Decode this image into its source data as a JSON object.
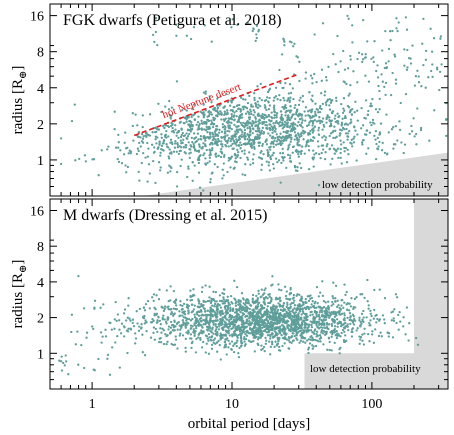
{
  "figure": {
    "xlabel": "orbital period [days]",
    "point_color": "#5f9e9a",
    "region_color": "#d9d9d9",
    "annotation_color": "#e41a1c"
  },
  "chart_data": [
    {
      "type": "scatter",
      "title": "FGK dwarfs (Petigura et al. 2018)",
      "xlabel": "orbital period [days]",
      "ylabel": "radius [R⊕]",
      "xscale": "log",
      "yscale": "log",
      "xlim": [
        0.5,
        350
      ],
      "ylim": [
        0.5,
        20
      ],
      "x_ticks": [
        1,
        10,
        100
      ],
      "x_tick_labels": [
        "1",
        "10",
        "100"
      ],
      "y_ticks": [
        1,
        2,
        4,
        8,
        16
      ],
      "y_tick_labels": [
        "1",
        "2",
        "4",
        "8",
        "16"
      ],
      "grid": false,
      "annotation": {
        "text": "hot Neptune desert",
        "line": [
          [
            2.0,
            1.6
          ],
          [
            30,
            5.2
          ]
        ],
        "style": "dashed",
        "color": "#e41a1c"
      },
      "region": {
        "label": "low detection probability",
        "polygon": [
          [
            2.3,
            0.5
          ],
          [
            350,
            1.15
          ],
          [
            350,
            0.5
          ]
        ]
      },
      "generator": {
        "seed": 7,
        "n_points": 1900,
        "description_points": "dense cloud 5–350 d, 0.9–4 R⊕; sparse large planets at long periods"
      }
    },
    {
      "type": "scatter",
      "title": "M dwarfs (Dressing et al. 2015)",
      "xlabel": "orbital period [days]",
      "ylabel": "radius [R⊕]",
      "xscale": "log",
      "yscale": "log",
      "xlim": [
        0.5,
        350
      ],
      "ylim": [
        0.5,
        20
      ],
      "x_ticks": [
        1,
        10,
        100
      ],
      "x_tick_labels": [
        "1",
        "10",
        "100"
      ],
      "y_ticks": [
        1,
        2,
        4,
        8,
        16
      ],
      "y_tick_labels": [
        "1",
        "2",
        "4",
        "8",
        "16"
      ],
      "grid": false,
      "region": {
        "label": "low detection probability",
        "polygon": [
          [
            33,
            0.5
          ],
          [
            33,
            1.0
          ],
          [
            200,
            1.0
          ],
          [
            200,
            20
          ],
          [
            350,
            20
          ],
          [
            350,
            0.5
          ]
        ]
      },
      "generator": {
        "seed": 11,
        "n_points": 2200,
        "description_points": "dense cloud 5–200 d, 0.9–3.5 R⊕ concentrated near 2 R⊕"
      }
    }
  ]
}
